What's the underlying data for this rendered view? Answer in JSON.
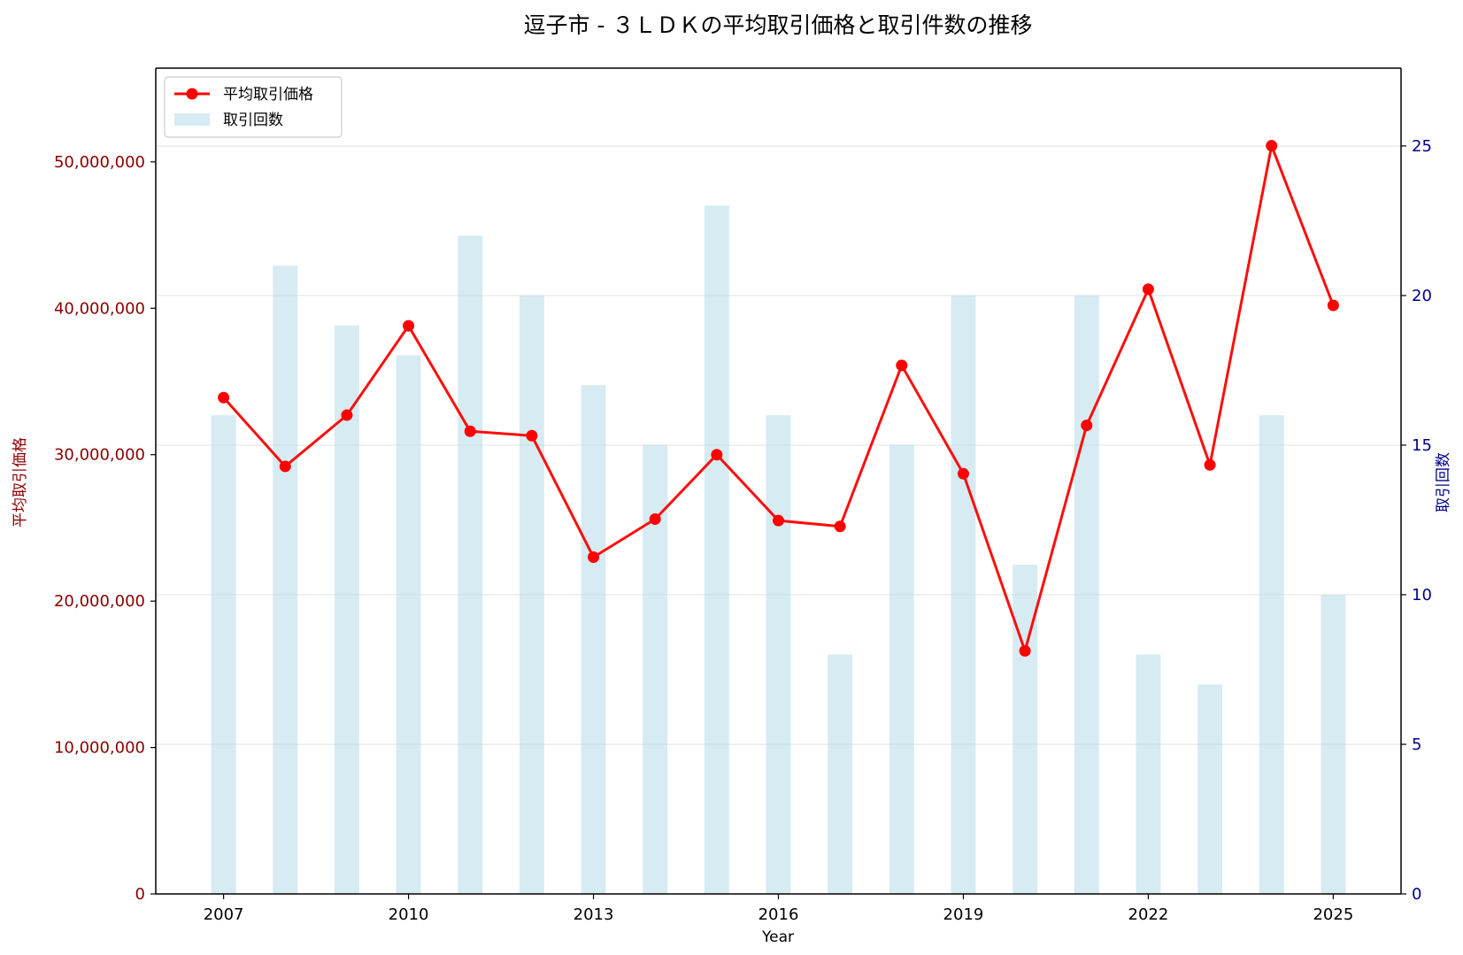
{
  "chart_data": {
    "type": "bar+line",
    "title": "逗子市 - ３ＬＤＫの平均取引価格と取引件数の推移",
    "xlabel": "Year",
    "ylabel_left": "平均取引価格",
    "ylabel_right": "取引回数",
    "x": [
      2007,
      2008,
      2009,
      2010,
      2011,
      2012,
      2013,
      2014,
      2015,
      2016,
      2017,
      2018,
      2019,
      2020,
      2021,
      2022,
      2023,
      2024,
      2025
    ],
    "x_ticks": [
      2007,
      2010,
      2013,
      2016,
      2019,
      2022,
      2025
    ],
    "x_tick_labels": [
      "2007",
      "2010",
      "2013",
      "2016",
      "2019",
      "2022",
      "2025"
    ],
    "xlim": [
      2005.9,
      2026.1
    ],
    "ylim_left": [
      0,
      56400000
    ],
    "ylim_right": [
      0,
      27.6
    ],
    "left_ticks": [
      0,
      10000000,
      20000000,
      30000000,
      40000000,
      50000000
    ],
    "left_tick_labels": [
      "0",
      "10,000,000",
      "20,000,000",
      "30,000,000",
      "40,000,000",
      "50,000,000"
    ],
    "right_ticks": [
      0,
      5,
      10,
      15,
      20,
      25
    ],
    "right_tick_labels": [
      "0",
      "5",
      "10",
      "15",
      "20",
      "25"
    ],
    "grid": true,
    "legend_position": "top-left",
    "series": [
      {
        "name": "平均取引価格",
        "type": "line",
        "axis": "left",
        "color": "#ff0000",
        "values": [
          33900000,
          29200000,
          32700000,
          38800000,
          31600000,
          31300000,
          23000000,
          25600000,
          30000000,
          25500000,
          25100000,
          36100000,
          28700000,
          16600000,
          32000000,
          41300000,
          29300000,
          51100000,
          40200000
        ]
      },
      {
        "name": "取引回数",
        "type": "bar",
        "axis": "right",
        "color": "#add8e6",
        "values": [
          16,
          21,
          19,
          18,
          22,
          20,
          17,
          15,
          23,
          16,
          8,
          15,
          20,
          11,
          20,
          8,
          7,
          16,
          10
        ]
      }
    ],
    "colors": {
      "left_axis": "#8b0000",
      "right_axis": "#00008b",
      "grid": "#e6e6e6"
    }
  }
}
